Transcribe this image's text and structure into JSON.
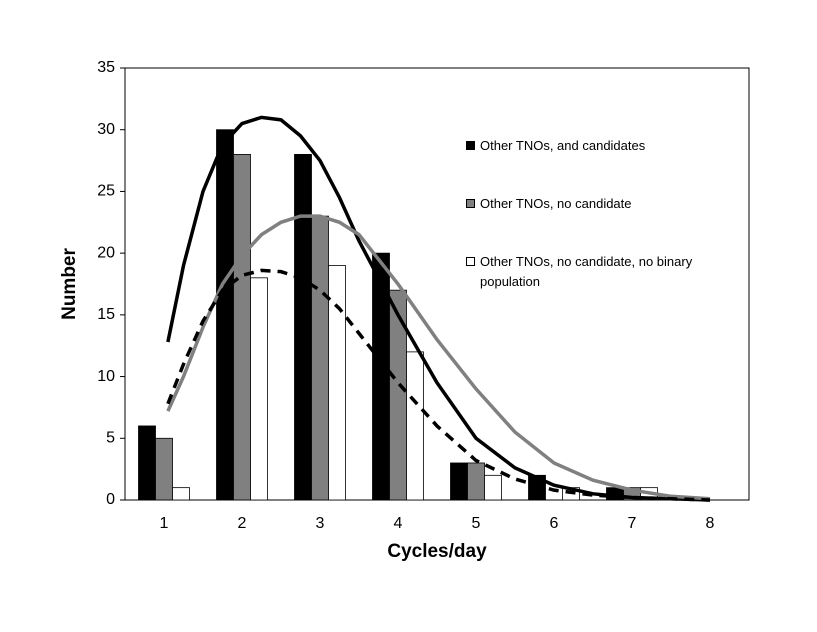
{
  "chart_data": {
    "type": "bar",
    "x_label": "Cycles/day",
    "y_label": "Number",
    "categories": [
      "1",
      "2",
      "3",
      "4",
      "5",
      "6",
      "7",
      "8"
    ],
    "series": [
      {
        "name": "Other TNOs, and candidates",
        "color": "#000000",
        "values": [
          6,
          30,
          28,
          20,
          3,
          2,
          1,
          0
        ]
      },
      {
        "name": "Other TNOs, no candidate",
        "color": "#808080",
        "values": [
          5,
          28,
          23,
          17,
          3,
          0,
          1,
          0
        ]
      },
      {
        "name": "Other TNOs, no candidate, no binary population",
        "color": "#ffffff",
        "values": [
          1,
          18,
          19,
          12,
          2,
          1,
          1,
          0
        ]
      }
    ],
    "curves": [
      {
        "color": "#000000",
        "dashed": false,
        "x": [
          1.05,
          1.25,
          1.5,
          1.75,
          2,
          2.25,
          2.5,
          2.75,
          3,
          3.25,
          3.5,
          3.75,
          4,
          4.5,
          5,
          5.5,
          6,
          6.5,
          7,
          7.5,
          8
        ],
        "values": [
          12.8,
          19,
          25,
          28.8,
          30.5,
          31,
          30.8,
          29.5,
          27.5,
          24.5,
          21,
          18,
          15,
          9.5,
          5,
          2.6,
          1.2,
          0.5,
          0.2,
          0.1,
          0
        ]
      },
      {
        "color": "#808080",
        "dashed": false,
        "x": [
          1.05,
          1.25,
          1.5,
          1.75,
          2,
          2.25,
          2.5,
          2.75,
          3,
          3.25,
          3.5,
          3.75,
          4,
          4.5,
          5,
          5.5,
          6,
          6.5,
          7,
          7.5,
          8
        ],
        "values": [
          7.2,
          10,
          14,
          17.5,
          19.8,
          21.5,
          22.5,
          23,
          23,
          22.5,
          21.5,
          19.5,
          17.5,
          13,
          9,
          5.5,
          3,
          1.6,
          0.8,
          0.3,
          0.1
        ]
      },
      {
        "color": "#000000",
        "dashed": true,
        "x": [
          1.05,
          1.25,
          1.5,
          1.75,
          2,
          2.25,
          2.5,
          2.75,
          3,
          3.25,
          3.5,
          3.75,
          4,
          4.5,
          5,
          5.5,
          6,
          6.5,
          7,
          7.5,
          8
        ],
        "values": [
          7.8,
          11,
          14.5,
          17,
          18.2,
          18.6,
          18.5,
          18,
          17,
          15.5,
          13.5,
          11.5,
          9.5,
          6,
          3.2,
          1.7,
          0.8,
          0.4,
          0.2,
          0.1,
          0
        ]
      }
    ],
    "xlim": [
      0.5,
      8.5
    ],
    "ylim": [
      0,
      35
    ],
    "yticks": [
      0,
      5,
      10,
      15,
      20,
      25,
      30,
      35
    ],
    "grid": false
  }
}
